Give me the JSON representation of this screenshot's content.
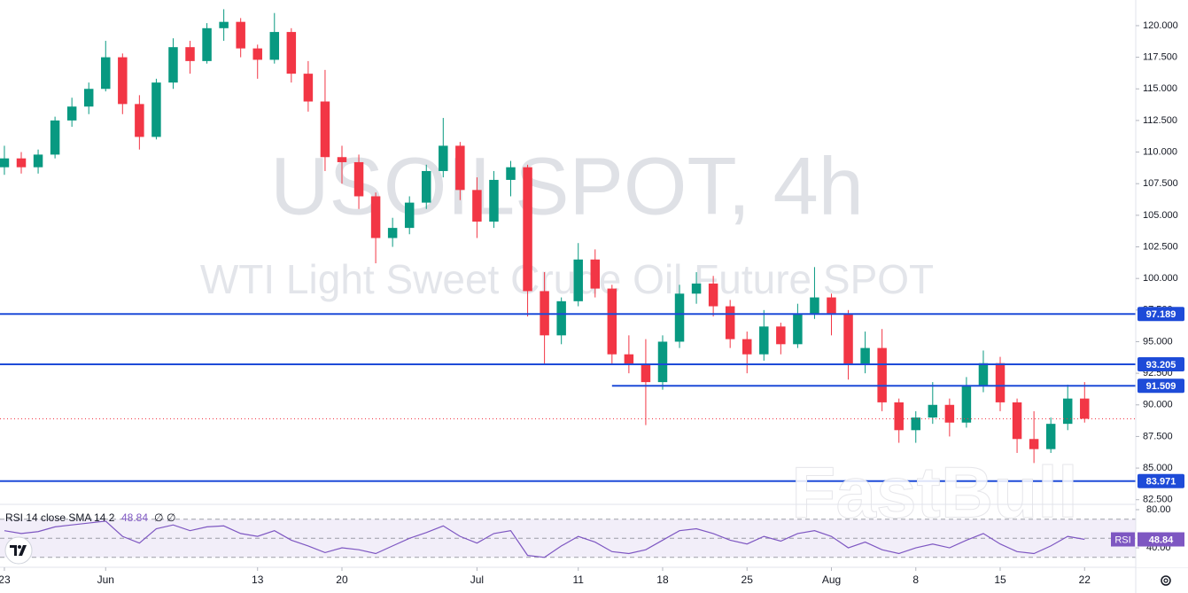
{
  "chart_data": {
    "type": "candlestick",
    "title": "USOILSPOT, 4h",
    "subtitle": "WTI Light Sweet Crude Oil Future SPOT",
    "brand": "FastBull",
    "up_color": "#089981",
    "down_color": "#f23645",
    "level_color": "#1e4bd8",
    "xlim": [
      -0.26,
      67.03
    ],
    "xticks": [
      {
        "value": 0,
        "label": "23"
      },
      {
        "value": 6,
        "label": "Jun"
      },
      {
        "value": 15,
        "label": "13"
      },
      {
        "value": 20,
        "label": "20"
      },
      {
        "value": 28,
        "label": "Jul"
      },
      {
        "value": 34,
        "label": "11"
      },
      {
        "value": 39,
        "label": "18"
      },
      {
        "value": 44,
        "label": "25"
      },
      {
        "value": 49,
        "label": "Aug"
      },
      {
        "value": 54,
        "label": "8"
      },
      {
        "value": 59,
        "label": "15"
      },
      {
        "value": 64,
        "label": "22"
      }
    ],
    "ylim": [
      82.2,
      122.03
    ],
    "yticks": [
      {
        "value": 82.5,
        "label": "82.500"
      },
      {
        "value": 85,
        "label": "85.000"
      },
      {
        "value": 87.5,
        "label": "87.500"
      },
      {
        "value": 90,
        "label": "90.000"
      },
      {
        "value": 92.5,
        "label": "92.500"
      },
      {
        "value": 95,
        "label": "95.000"
      },
      {
        "value": 97.5,
        "label": "97.500"
      },
      {
        "value": 100,
        "label": "100.000"
      },
      {
        "value": 102.5,
        "label": "102.500"
      },
      {
        "value": 105,
        "label": "105.000"
      },
      {
        "value": 107.5,
        "label": "107.500"
      },
      {
        "value": 110,
        "label": "110.000"
      },
      {
        "value": 112.5,
        "label": "112.500"
      },
      {
        "value": 115,
        "label": "115.000"
      },
      {
        "value": 117.5,
        "label": "117.500"
      },
      {
        "value": 120,
        "label": "120.000"
      }
    ],
    "grid": false,
    "open": [
      108.8,
      109.5,
      108.8,
      109.8,
      112.5,
      113.6,
      115,
      117.5,
      113.8,
      111.2,
      115.5,
      118.3,
      117.2,
      119.8,
      120.3,
      118.2,
      117.3,
      119.5,
      116.2,
      114,
      109.6,
      109.2,
      106.5,
      103.2,
      104,
      106,
      108.5,
      110.5,
      107,
      104.5,
      107.8,
      108.8,
      99,
      95.5,
      98.2,
      101.5,
      99.2,
      94,
      93.2,
      91.8,
      95,
      98.8,
      99.6,
      97.8,
      95.2,
      94,
      96.2,
      94.8,
      97.2,
      98.5,
      97.2,
      93.2,
      94.5,
      90.2,
      88,
      89,
      90,
      88.6,
      91.5,
      93.3,
      90.2,
      87.3,
      86.5,
      88.5,
      90.5
    ],
    "high": [
      110.5,
      110,
      110.2,
      112.8,
      114.3,
      115.5,
      118.8,
      117.8,
      114.5,
      115.8,
      119,
      118.8,
      120.2,
      121.3,
      120.6,
      118.5,
      121,
      119.8,
      117.2,
      116.5,
      110.5,
      109.8,
      106.8,
      104.8,
      106.5,
      109,
      112.7,
      110.8,
      108,
      108.5,
      109.3,
      109,
      100.5,
      98.5,
      102.8,
      102.3,
      99.5,
      95.5,
      95.2,
      95.5,
      99.5,
      100.5,
      100.2,
      98.3,
      95.8,
      97.5,
      96.5,
      98,
      100.9,
      98.8,
      97.5,
      95.8,
      96,
      90.5,
      89.5,
      91.8,
      90.5,
      92.2,
      94.3,
      93.8,
      90.5,
      89.5,
      89,
      91.6,
      91.8
    ],
    "low": [
      108.2,
      108.3,
      108.3,
      109.5,
      112,
      113,
      114.8,
      113,
      110.2,
      111,
      115,
      116.2,
      117,
      118.8,
      117.5,
      115.8,
      117,
      115.5,
      113.2,
      108.5,
      107.5,
      105.5,
      101.2,
      102.5,
      103.5,
      105.5,
      108,
      106.2,
      103.2,
      104,
      106.5,
      97,
      93.2,
      94.8,
      97.8,
      98.5,
      93.2,
      92.5,
      88.4,
      91.2,
      94.5,
      98,
      97,
      94.5,
      92.5,
      93.5,
      94,
      94.5,
      96.8,
      95.5,
      92,
      92.5,
      89.5,
      87,
      87,
      88.5,
      87.5,
      88.2,
      91,
      89.5,
      86.2,
      85.4,
      86.2,
      88,
      88.6
    ],
    "close": [
      109.5,
      108.8,
      109.8,
      112.5,
      113.6,
      115,
      117.5,
      113.8,
      111.2,
      115.5,
      118.3,
      117.2,
      119.8,
      120.3,
      118.2,
      117.3,
      119.5,
      116.2,
      114,
      109.6,
      109.2,
      106.5,
      103.2,
      104,
      106,
      108.5,
      110.5,
      107,
      104.5,
      107.8,
      108.8,
      99,
      95.5,
      98.2,
      101.5,
      99.2,
      94,
      93.2,
      91.8,
      95,
      98.8,
      99.6,
      97.8,
      95.2,
      94,
      96.2,
      94.8,
      97.2,
      98.5,
      97.2,
      93.2,
      94.5,
      90.2,
      88,
      89,
      90,
      88.6,
      91.5,
      93.3,
      90.2,
      87.3,
      86.5,
      88.5,
      90.5,
      88.9
    ],
    "levels": [
      {
        "value": 97.189
      },
      {
        "value": 93.205
      },
      {
        "value": 91.509,
        "from": 36
      },
      {
        "value": 83.971
      }
    ],
    "rsi_title": "RSI 14 close SMA 14 2",
    "rsi_name": "RSI",
    "rsi_na": [
      "∅",
      "∅"
    ],
    "rsi_color": "#7e57c2",
    "rsi_ylim": [
      23.3,
      84.65
    ],
    "rsi_yticks": [
      {
        "value": 40,
        "label": "40.00"
      },
      {
        "value": 80,
        "label": "80.00"
      }
    ],
    "rsi_bands": [
      30,
      50,
      70
    ],
    "rsi": [
      58,
      55,
      57,
      62,
      64,
      66,
      68,
      52,
      45,
      60,
      64,
      58,
      62,
      63,
      55,
      52,
      58,
      48,
      42,
      35,
      40,
      38,
      34,
      42,
      50,
      56,
      63,
      52,
      45,
      55,
      58,
      32,
      30,
      42,
      52,
      46,
      36,
      34,
      38,
      48,
      58,
      60,
      55,
      48,
      44,
      52,
      47,
      55,
      58,
      52,
      40,
      46,
      38,
      34,
      40,
      44,
      40,
      48,
      55,
      44,
      36,
      34,
      42,
      52,
      48.84
    ]
  }
}
